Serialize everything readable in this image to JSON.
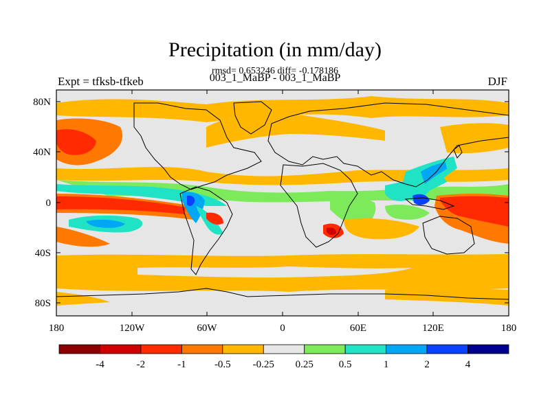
{
  "header": {
    "title": "Precipitation (in mm/day)",
    "stats": "rmsd= 0.653246 diff= -0.178186",
    "expt": "Expt = tfksb-tfkeb",
    "runs": "003_1_MaBP - 003_1_MaBP",
    "season": "DJF"
  },
  "map": {
    "y_ticks": [
      "80N",
      "40N",
      "0",
      "40S",
      "80S"
    ],
    "x_ticks": [
      "180",
      "120W",
      "60W",
      "0",
      "60E",
      "120E",
      "180"
    ],
    "land_color": "#e6e6e6"
  },
  "legend": {
    "boundaries": [
      "-4",
      "-2",
      "-1",
      "-0.5",
      "-0.25",
      "0.25",
      "0.5",
      "1",
      "2",
      "4"
    ],
    "colors": [
      "#8b0000",
      "#d00000",
      "#ff2a00",
      "#ff7800",
      "#ffb700",
      "#e6e6e6",
      "#7dea5c",
      "#20e3c6",
      "#00a7f5",
      "#0a40ff",
      "#000090"
    ]
  }
}
